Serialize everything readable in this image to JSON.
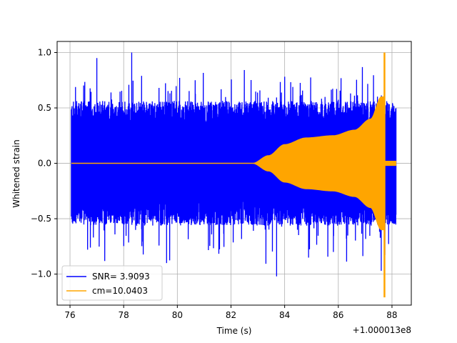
{
  "chart_data": {
    "type": "line",
    "title": "",
    "xlabel": "Time (s)",
    "ylabel": "Whitened strain",
    "x_offset_label": "+1.000013e8",
    "xlim": [
      75.52,
      88.72
    ],
    "ylim": [
      -1.28,
      1.1
    ],
    "xticks": [
      76,
      78,
      80,
      82,
      84,
      86,
      88
    ],
    "xtick_labels": [
      "76",
      "78",
      "80",
      "82",
      "84",
      "86",
      "88"
    ],
    "yticks": [
      -1.0,
      -0.5,
      0.0,
      0.5,
      1.0
    ],
    "ytick_labels": [
      "−1.0",
      "−0.5",
      "0.0",
      "0.5",
      "1.0"
    ],
    "grid": true,
    "legend_position": "lower-left",
    "series": [
      {
        "name": "SNR= 3.9093",
        "color": "#0000ff",
        "kind": "noise_envelope",
        "x_range": [
          76.05,
          88.15
        ],
        "typical_upper": 0.45,
        "typical_lower": -0.45,
        "max": 1.0,
        "min": -1.02
      },
      {
        "name": "cm=10.0403",
        "color": "#ffa500",
        "kind": "chirp_envelope",
        "x_range": [
          76.05,
          88.15
        ],
        "envelope": [
          {
            "x": 76.05,
            "amp": 0.0
          },
          {
            "x": 82.8,
            "amp": 0.0
          },
          {
            "x": 83.4,
            "amp": 0.07
          },
          {
            "x": 84.0,
            "amp": 0.17
          },
          {
            "x": 84.8,
            "amp": 0.23
          },
          {
            "x": 85.8,
            "amp": 0.25
          },
          {
            "x": 86.6,
            "amp": 0.3
          },
          {
            "x": 87.2,
            "amp": 0.4
          },
          {
            "x": 87.6,
            "amp": 0.6
          }
        ],
        "spike_x": 87.72,
        "spike_max": 1.0,
        "spike_min": -1.21,
        "post_spike_amp": 0.02
      }
    ]
  }
}
